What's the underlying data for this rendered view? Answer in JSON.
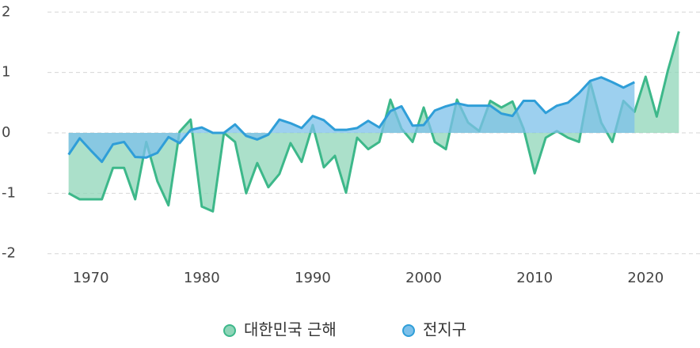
{
  "chart_data": {
    "type": "area",
    "x": [
      1968,
      1969,
      1970,
      1971,
      1972,
      1973,
      1974,
      1975,
      1976,
      1977,
      1978,
      1979,
      1980,
      1981,
      1982,
      1983,
      1984,
      1985,
      1986,
      1987,
      1988,
      1989,
      1990,
      1991,
      1992,
      1993,
      1994,
      1995,
      1996,
      1997,
      1998,
      1999,
      2000,
      2001,
      2002,
      2003,
      2004,
      2005,
      2006,
      2007,
      2008,
      2009,
      2010,
      2011,
      2012,
      2013,
      2014,
      2015,
      2016,
      2017,
      2018,
      2019,
      2020,
      2021,
      2022,
      2023
    ],
    "series": [
      {
        "name": "대한민국 근해",
        "color": "#3db88a",
        "fill": "#8fd5b8",
        "values": [
          -1.0,
          -1.1,
          -1.1,
          -1.1,
          -0.58,
          -0.58,
          -1.1,
          -0.15,
          -0.8,
          -1.2,
          0.02,
          0.22,
          -1.22,
          -1.3,
          0.0,
          -0.15,
          -1.0,
          -0.5,
          -0.9,
          -0.68,
          -0.17,
          -0.48,
          0.13,
          -0.57,
          -0.38,
          -0.99,
          -0.08,
          -0.27,
          -0.15,
          0.55,
          0.07,
          -0.15,
          0.42,
          -0.15,
          -0.27,
          0.55,
          0.17,
          0.03,
          0.53,
          0.42,
          0.52,
          0.07,
          -0.67,
          -0.08,
          0.03,
          -0.08,
          -0.15,
          0.85,
          0.17,
          -0.15,
          0.53,
          0.35,
          0.93,
          0.27,
          1.03,
          1.68
        ]
      },
      {
        "name": "전지구",
        "color": "#2f9ed8",
        "fill": "#7cc0ea",
        "values": [
          -0.36,
          -0.09,
          -0.29,
          -0.48,
          -0.19,
          -0.15,
          -0.4,
          -0.41,
          -0.33,
          -0.07,
          -0.17,
          0.05,
          0.09,
          0.0,
          0.0,
          0.14,
          -0.05,
          -0.11,
          -0.03,
          0.22,
          0.16,
          0.08,
          0.28,
          0.21,
          0.05,
          0.05,
          0.08,
          0.2,
          0.09,
          0.36,
          0.44,
          0.12,
          0.13,
          0.37,
          0.44,
          0.49,
          0.45,
          0.45,
          0.45,
          0.32,
          0.28,
          0.53,
          0.53,
          0.33,
          0.45,
          0.5,
          0.66,
          0.86,
          0.92,
          0.84,
          0.75,
          0.84,
          null,
          null,
          null,
          null
        ]
      }
    ],
    "xlim": [
      1966.1,
      2024.9
    ],
    "xticks": [
      1970,
      1980,
      1990,
      2000,
      2010,
      2020
    ],
    "ylim": [
      -2.2,
      2.2
    ],
    "yticks": [
      2,
      1,
      0,
      -1,
      -2
    ],
    "grid": true
  }
}
